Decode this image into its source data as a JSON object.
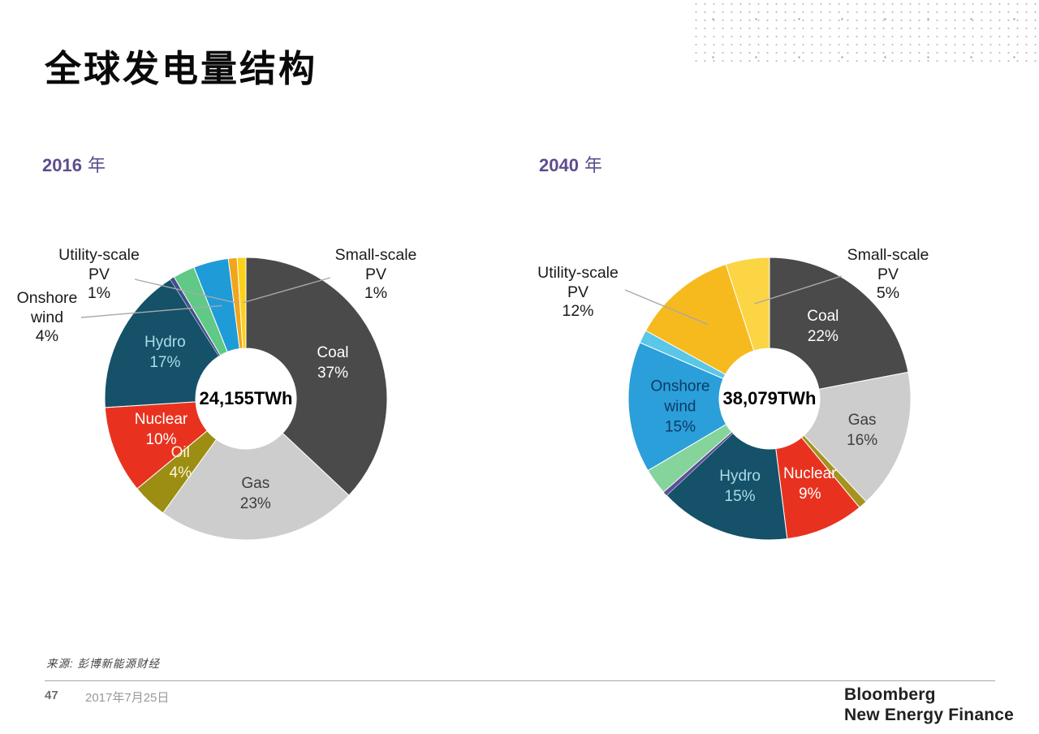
{
  "page": {
    "title": "全球发电量结构",
    "source_note": "来源: 彭博新能源财经",
    "page_number": "47",
    "date": "2017年7月25日",
    "logo_line1": "Bloomberg",
    "logo_line2": "New Energy Finance",
    "accent_color": "#5e4c8e",
    "leader_line_color": "#a9a9a9"
  },
  "chart_data": [
    {
      "type": "pie",
      "subtype": "donut",
      "year": "2016",
      "year_suffix": "年",
      "total_label": "24,155TWh",
      "legend_position": "none",
      "slices": [
        {
          "name": "Coal",
          "pct": 37,
          "pct_label": "37%",
          "color": "#4a4a4a",
          "label_pos": "inside",
          "label_color": "#ffffff",
          "label_lines": [
            "Coal",
            "37%"
          ]
        },
        {
          "name": "Gas",
          "pct": 23,
          "pct_label": "23%",
          "color": "#cdcdcd",
          "label_pos": "inside",
          "label_color": "#3e3e3e",
          "label_lines": [
            "Gas",
            "23%"
          ]
        },
        {
          "name": "Oil",
          "pct": 4,
          "pct_label": "4%",
          "color": "#9c8e12",
          "label_pos": "inside",
          "label_color": "#fdf6d8",
          "label_lines": [
            "Oil",
            "4%"
          ]
        },
        {
          "name": "Nuclear",
          "pct": 10,
          "pct_label": "10%",
          "color": "#e8321f",
          "label_pos": "inside",
          "label_color": "#ffffff",
          "label_lines": [
            "Nuclear",
            "10%"
          ]
        },
        {
          "name": "Hydro",
          "pct": 17,
          "pct_label": "17%",
          "color": "#155169",
          "label_pos": "inside",
          "label_color": "#a9dcea",
          "label_lines": [
            "Hydro",
            "17%"
          ]
        },
        {
          "name": "",
          "pct": 0.5,
          "pct_label": "",
          "color": "#414f8c",
          "label_pos": "none",
          "label_color": "",
          "label_lines": []
        },
        {
          "name": "",
          "pct": 2.5,
          "pct_label": "",
          "color": "#5fc985",
          "label_pos": "none",
          "label_color": "",
          "label_lines": []
        },
        {
          "name": "Onshore wind",
          "pct": 4,
          "pct_label": "4%",
          "color": "#1f9bd8",
          "label_pos": "outside",
          "label_color": "#1a1a1a",
          "label_lines": [
            "Onshore",
            "wind",
            "4%"
          ]
        },
        {
          "name": "Utility-scale PV",
          "pct": 1,
          "pct_label": "1%",
          "color": "#f1a51c",
          "label_pos": "outside",
          "label_color": "#1a1a1a",
          "label_lines": [
            "Utility-scale",
            "PV",
            "1%"
          ]
        },
        {
          "name": "Small-scale PV",
          "pct": 1,
          "pct_label": "1%",
          "color": "#fcd11a",
          "label_pos": "outside",
          "label_color": "#1a1a1a",
          "label_lines": [
            "Small-scale",
            "PV",
            "1%"
          ]
        }
      ]
    },
    {
      "type": "pie",
      "subtype": "donut",
      "year": "2040",
      "year_suffix": "年",
      "total_label": "38,079TWh",
      "legend_position": "none",
      "slices": [
        {
          "name": "Coal",
          "pct": 22,
          "pct_label": "22%",
          "color": "#4a4a4a",
          "label_pos": "inside",
          "label_color": "#ffffff",
          "label_lines": [
            "Coal",
            "22%"
          ]
        },
        {
          "name": "Gas",
          "pct": 16,
          "pct_label": "16%",
          "color": "#cdcdcd",
          "label_pos": "inside",
          "label_color": "#3e3e3e",
          "label_lines": [
            "Gas",
            "16%"
          ]
        },
        {
          "name": "",
          "pct": 1,
          "pct_label": "",
          "color": "#a6921f",
          "label_pos": "none",
          "label_color": "",
          "label_lines": []
        },
        {
          "name": "Nuclear",
          "pct": 9,
          "pct_label": "9%",
          "color": "#e8321f",
          "label_pos": "inside",
          "label_color": "#ffffff",
          "label_lines": [
            "Nuclear",
            "9%"
          ]
        },
        {
          "name": "Hydro",
          "pct": 15,
          "pct_label": "15%",
          "color": "#155169",
          "label_pos": "inside",
          "label_color": "#a9dcea",
          "label_lines": [
            "Hydro",
            "15%"
          ]
        },
        {
          "name": "",
          "pct": 0.5,
          "pct_label": "",
          "color": "#5d4f97",
          "label_pos": "none",
          "label_color": "",
          "label_lines": []
        },
        {
          "name": "",
          "pct": 3,
          "pct_label": "",
          "color": "#85d49c",
          "label_pos": "none",
          "label_color": "",
          "label_lines": []
        },
        {
          "name": "Onshore wind",
          "pct": 15,
          "pct_label": "15%",
          "color": "#2b9fd9",
          "label_pos": "inside",
          "label_color": "#0e3a66",
          "label_lines": [
            "Onshore",
            "wind",
            "15%"
          ]
        },
        {
          "name": "",
          "pct": 1.5,
          "pct_label": "",
          "color": "#5ac6e8",
          "label_pos": "none",
          "label_color": "",
          "label_lines": []
        },
        {
          "name": "Utility-scale PV",
          "pct": 12,
          "pct_label": "12%",
          "color": "#f7ba1e",
          "label_pos": "outside",
          "label_color": "#1a1a1a",
          "label_lines": [
            "Utility-scale",
            "PV",
            "12%"
          ]
        },
        {
          "name": "Small-scale PV",
          "pct": 5,
          "pct_label": "5%",
          "color": "#fbd544",
          "label_pos": "outside",
          "label_color": "#1a1a1a",
          "label_lines": [
            "Small-scale",
            "PV",
            "5%"
          ]
        }
      ]
    }
  ]
}
